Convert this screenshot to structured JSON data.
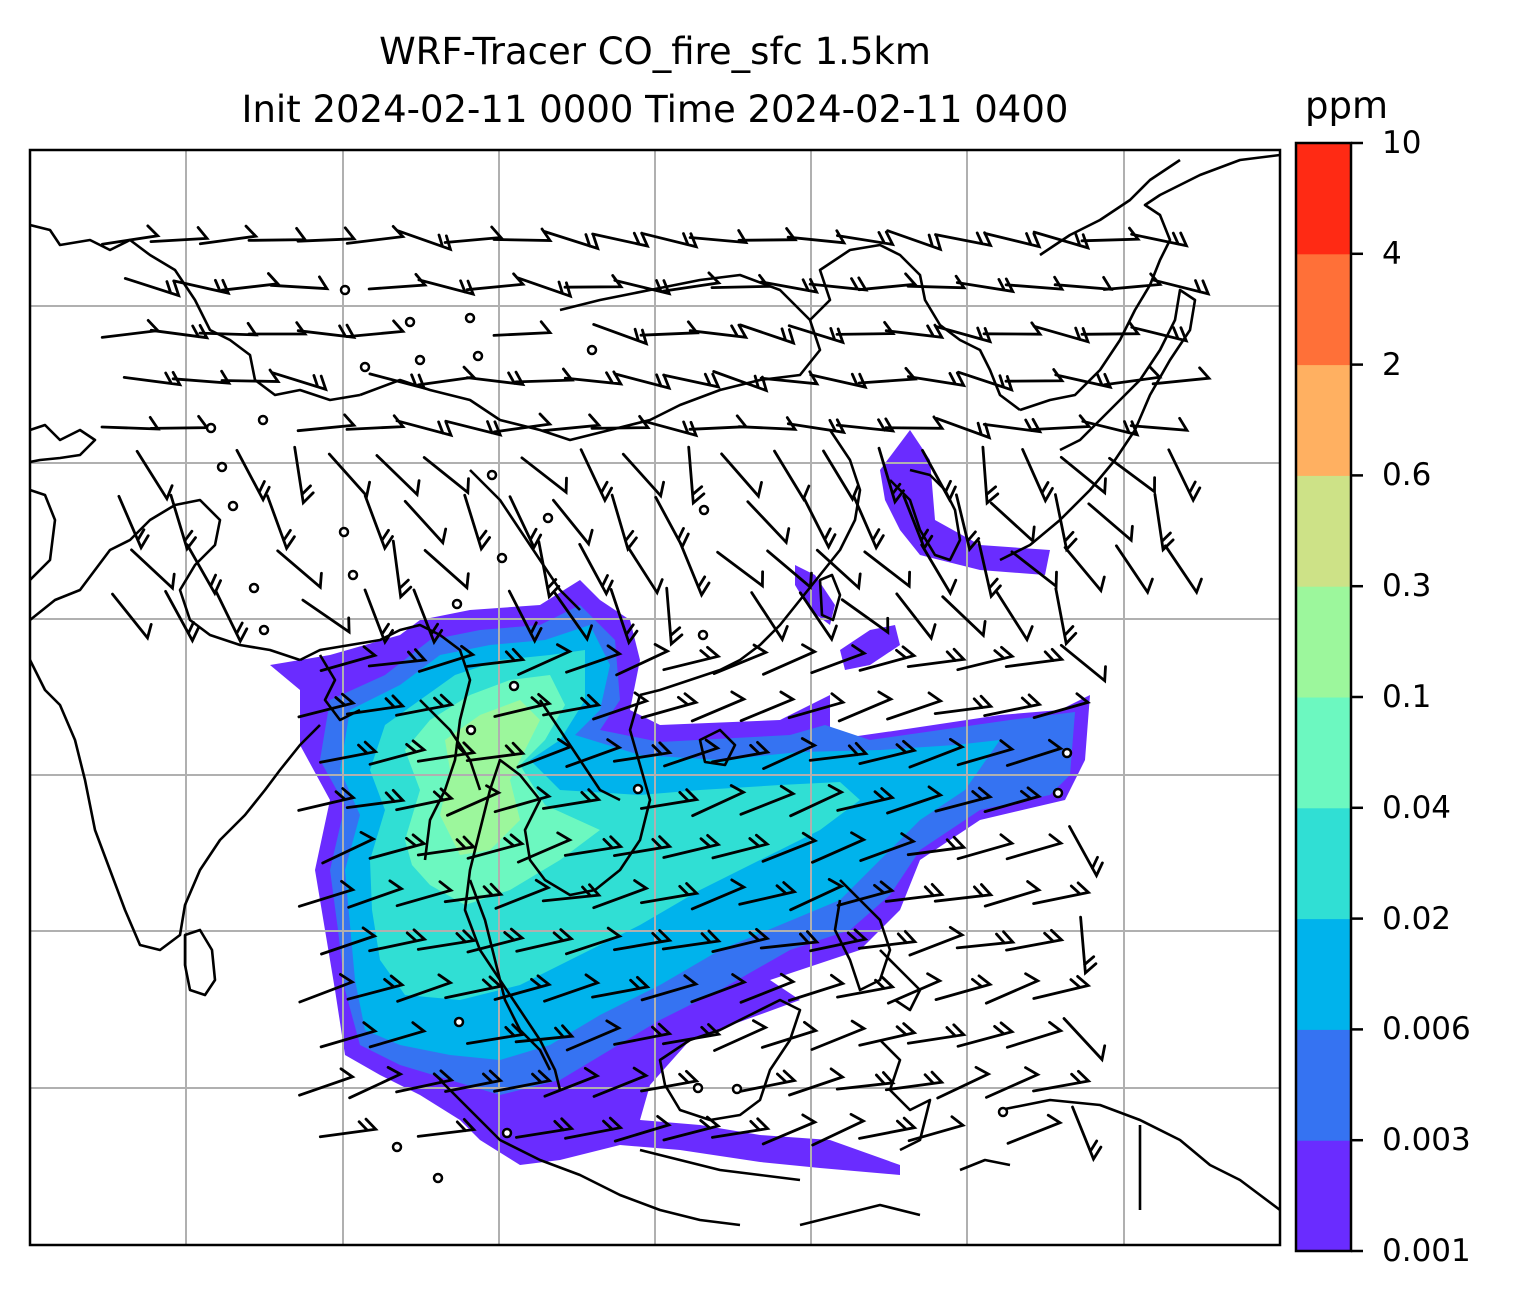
{
  "header": {
    "title_line1": "WRF-Tracer CO_fire_sfc 1.5km",
    "title_line2": "Init 2024-02-11 0000 Time 2024-02-11 0400"
  },
  "colorbar": {
    "unit": "ppm",
    "levels": [
      "0.001",
      "0.003",
      "0.006",
      "0.02",
      "0.04",
      "0.1",
      "0.3",
      "0.6",
      "2",
      "4",
      "10"
    ],
    "colors": [
      "#6a2cff",
      "#3573f2",
      "#00b3ec",
      "#30dfd4",
      "#6cf8c0",
      "#9cf79c",
      "#cde287",
      "#ffb061",
      "#ff7038",
      "#ff2a14"
    ]
  },
  "map": {
    "background": "#ffffff",
    "coastline_color": "#000000",
    "gridline_color": "#b0b0b0",
    "barb_color": "#000000",
    "layers": [
      "coastlines",
      "gridlines",
      "tracer-concentration",
      "wind-barbs"
    ]
  }
}
